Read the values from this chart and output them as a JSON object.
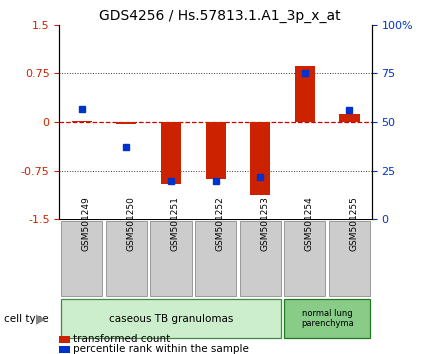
{
  "title": "GDS4256 / Hs.57813.1.A1_3p_x_at",
  "samples": [
    "GSM501249",
    "GSM501250",
    "GSM501251",
    "GSM501252",
    "GSM501253",
    "GSM501254",
    "GSM501255"
  ],
  "transformed_count": [
    0.02,
    -0.03,
    -0.95,
    -0.87,
    -1.12,
    0.87,
    0.13
  ],
  "percentile_rank": [
    57,
    37,
    20,
    20,
    22,
    75,
    56
  ],
  "ylim_left": [
    -1.5,
    1.5
  ],
  "ylim_right": [
    0,
    100
  ],
  "yticks_left": [
    -1.5,
    -0.75,
    0,
    0.75,
    1.5
  ],
  "yticks_right": [
    0,
    25,
    50,
    75,
    100
  ],
  "ytick_labels_left": [
    "-1.5",
    "-0.75",
    "0",
    "0.75",
    "1.5"
  ],
  "ytick_labels_right": [
    "0",
    "25",
    "50",
    "75",
    "100%"
  ],
  "bar_color": "#cc2200",
  "dot_color": "#0033cc",
  "zero_line_color": "#cc0000",
  "grid_color": "#333333",
  "bg_plot": "#ffffff",
  "legend_square_red": "#cc2200",
  "legend_square_blue": "#0033cc",
  "legend_label_red": "transformed count",
  "legend_label_blue": "percentile rank within the sample",
  "cell_type_label": "cell type",
  "group1_label": "caseous TB granulomas",
  "group1_indices": [
    0,
    1,
    2,
    3,
    4
  ],
  "group1_color": "#cceecc",
  "group1_edge": "#448844",
  "group2_label": "normal lung\nparenchyma",
  "group2_indices": [
    5,
    6
  ],
  "group2_color": "#88cc88",
  "group2_edge": "#227722",
  "bar_width": 0.45,
  "title_fontsize": 10,
  "axis_fontsize": 8,
  "tick_fontsize": 8,
  "sample_fontsize": 6.5,
  "group_fontsize": 7.5,
  "legend_fontsize": 7.5
}
